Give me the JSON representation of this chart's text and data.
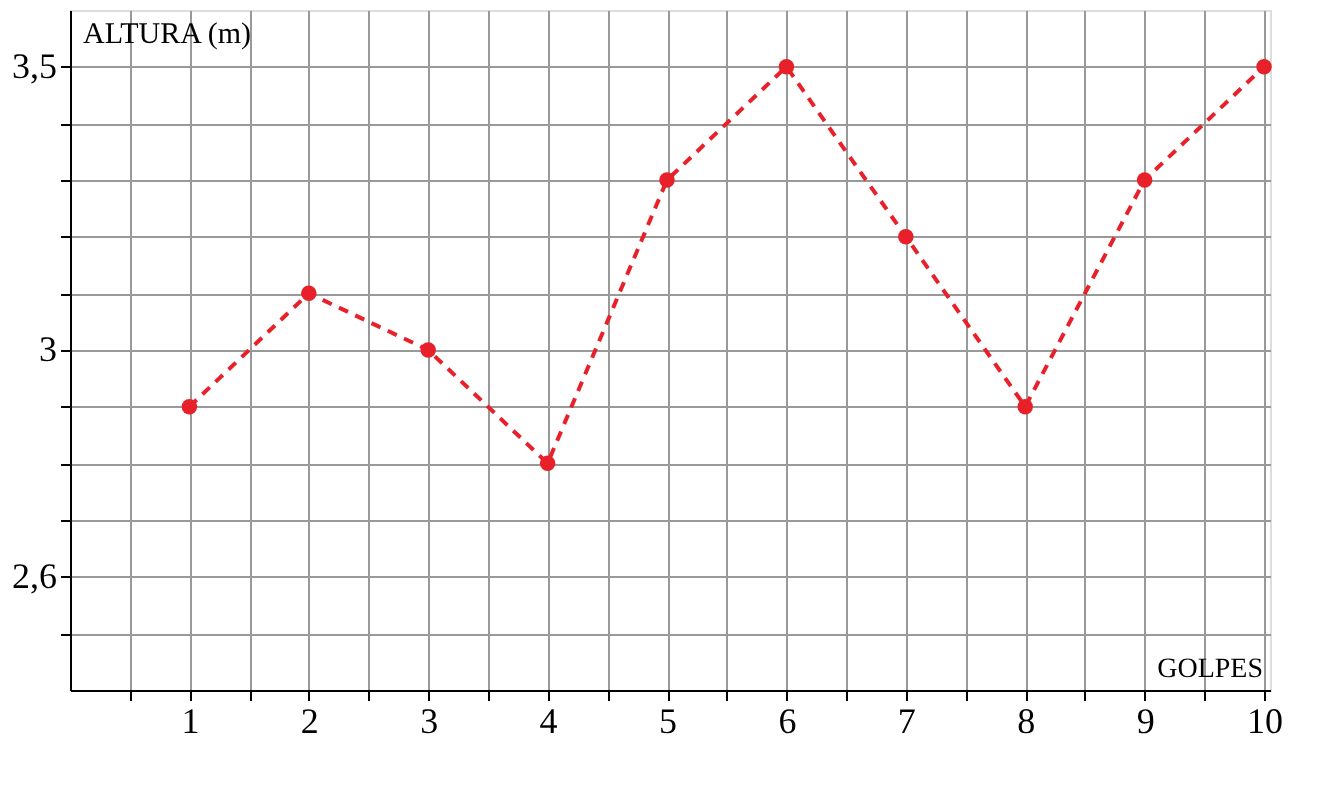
{
  "chart_data": {
    "type": "line",
    "xlabel": "GOLPES",
    "ylabel": "ALTURA (m)",
    "x": [
      1,
      2,
      3,
      4,
      5,
      6,
      7,
      8,
      9,
      10
    ],
    "series": [
      {
        "color": "#e8202a",
        "values": [
          2.9,
          3.1,
          3.0,
          2.8,
          3.3,
          3.5,
          3.2,
          2.9,
          3.3,
          3.5
        ]
      }
    ],
    "xlim": [
      0,
      10.05
    ],
    "xticks": [
      {
        "value": 0.5,
        "label": null
      },
      1,
      {
        "value": 1.5,
        "label": null
      },
      2,
      {
        "value": 2.5,
        "label": null
      },
      3,
      {
        "value": 3.5,
        "label": null
      },
      4,
      {
        "value": 4.5,
        "label": null
      },
      5,
      {
        "value": 5.5,
        "label": null
      },
      6,
      {
        "value": 6.5,
        "label": null
      },
      7,
      {
        "value": 7.5,
        "label": null
      },
      8,
      {
        "value": 8.5,
        "label": null
      },
      9,
      {
        "value": 9.5,
        "label": null
      },
      10
    ],
    "ylim": [
      2.4,
      3.6
    ],
    "yticks": [
      {
        "value": 2.5,
        "label": null
      },
      {
        "value": 2.6,
        "label": "2,6"
      },
      {
        "value": 2.7,
        "label": null
      },
      {
        "value": 2.8,
        "label": null
      },
      {
        "value": 2.9,
        "label": null
      },
      3,
      {
        "value": 3.1,
        "label": null
      },
      {
        "value": 3.2,
        "label": null
      },
      {
        "value": 3.3,
        "label": null
      },
      {
        "value": 3.4,
        "label": null
      },
      {
        "value": 3.5,
        "label": "3,5"
      }
    ],
    "grid": true,
    "marker": "circle",
    "line_style": "dashed"
  }
}
